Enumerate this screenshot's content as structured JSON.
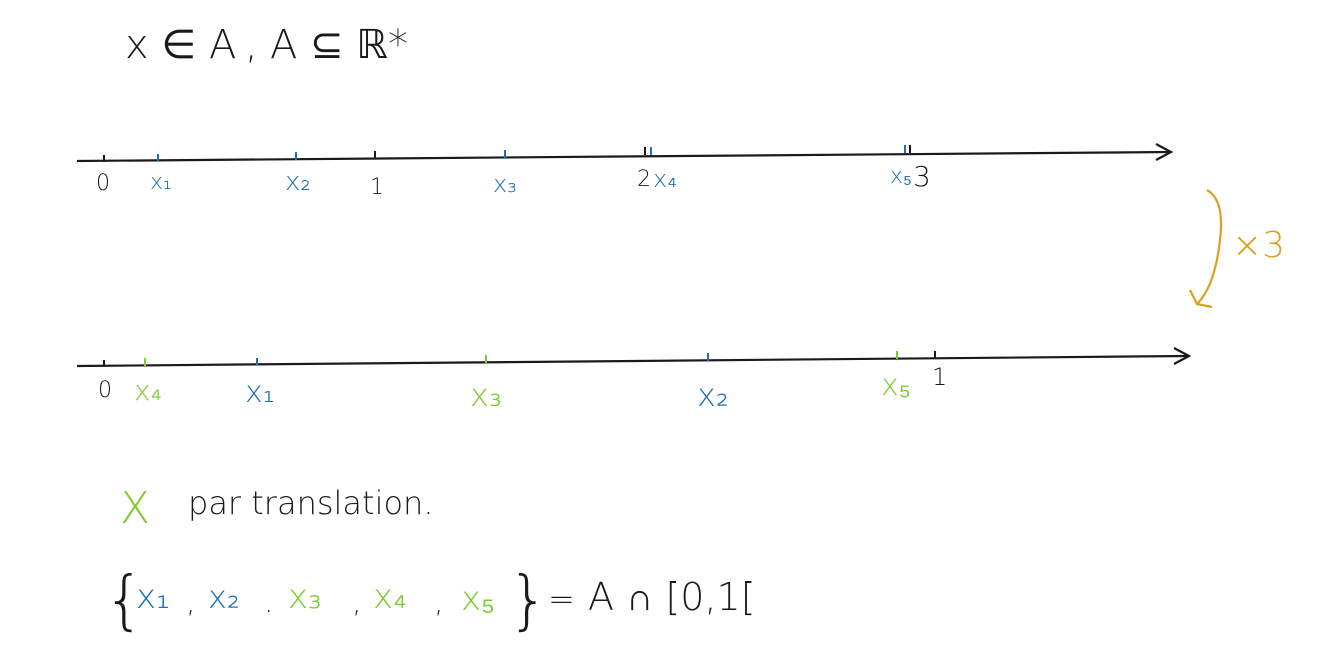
{
  "colors": {
    "ink": "#1a1a1a",
    "blue": "#1f6fb4",
    "green": "#7ccc2c",
    "orange": "#d9a21b"
  },
  "title_formula": {
    "left": "x ∈ A",
    "sep": ",",
    "right": "A ⊆ ℝ*"
  },
  "axis_top": {
    "black_labels": [
      "0",
      "1",
      "2",
      "3"
    ],
    "points": [
      "x₁",
      "x₂",
      "x₃",
      "x₄",
      "x₅"
    ]
  },
  "scale_annotation": "×3",
  "axis_bottom": {
    "black_labels": [
      "0",
      "1"
    ],
    "points": [
      {
        "label": "x₄",
        "color": "green"
      },
      {
        "label": "x₁",
        "color": "blue"
      },
      {
        "label": "x₃",
        "color": "green"
      },
      {
        "label": "x₂",
        "color": "blue"
      },
      {
        "label": "x₅",
        "color": "green"
      }
    ]
  },
  "legend": {
    "mark": "X",
    "text": "par translation."
  },
  "set_line": {
    "open_brace": "{",
    "items": [
      {
        "label": "x₁",
        "color": "blue"
      },
      {
        "label": "x₂",
        "color": "blue"
      },
      {
        "label": "x₃",
        "color": "green"
      },
      {
        "label": "x₄",
        "color": "green"
      },
      {
        "label": "x₅",
        "color": "green"
      }
    ],
    "close_brace": "}",
    "equals": "=",
    "rhs": "A ∩ [0,1["
  }
}
